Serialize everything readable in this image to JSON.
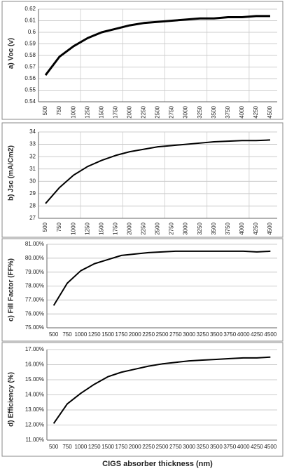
{
  "chart_data": [
    {
      "type": "line",
      "ylabel": "a)  Voc (v)",
      "categories": [
        "500",
        "750",
        "1000",
        "1250",
        "1500",
        "1750",
        "2000",
        "2250",
        "2500",
        "2750",
        "3000",
        "3250",
        "3500",
        "3750",
        "4000",
        "4250",
        "4500"
      ],
      "series": [
        {
          "name": "Voc",
          "color": "#000000",
          "values": [
            0.563,
            0.579,
            0.588,
            0.595,
            0.6,
            0.603,
            0.606,
            0.608,
            0.609,
            0.61,
            0.611,
            0.612,
            0.612,
            0.613,
            0.613,
            0.614,
            0.614
          ]
        }
      ],
      "ylim": [
        0.54,
        0.62
      ],
      "yticks": [
        0.54,
        0.55,
        0.56,
        0.57,
        0.58,
        0.59,
        0.6,
        0.61,
        0.62
      ],
      "grid": "both"
    },
    {
      "type": "line",
      "ylabel": "b) Jsc (mA/Cm2)",
      "categories": [
        "500",
        "750",
        "1000",
        "1250",
        "1500",
        "1750",
        "2000",
        "2250",
        "2500",
        "2750",
        "3000",
        "3250",
        "3500",
        "3750",
        "4000",
        "4250",
        "4500"
      ],
      "series": [
        {
          "name": "Jsc",
          "color": "#000000",
          "values": [
            28.2,
            29.5,
            30.5,
            31.2,
            31.7,
            32.1,
            32.4,
            32.6,
            32.8,
            32.9,
            33.0,
            33.1,
            33.2,
            33.25,
            33.3,
            33.3,
            33.35
          ]
        }
      ],
      "ylim": [
        27,
        34
      ],
      "yticks": [
        27,
        28,
        29,
        30,
        31,
        32,
        33,
        34
      ],
      "grid": "both"
    },
    {
      "type": "line",
      "ylabel": "c) Fill Factor (FF%)",
      "categories": [
        "500",
        "750",
        "1000",
        "1250",
        "1500",
        "1750",
        "2000",
        "2250",
        "2500",
        "2750",
        "3000",
        "3250",
        "3500",
        "3750",
        "4000",
        "4250",
        "4500"
      ],
      "series": [
        {
          "name": "FF",
          "color": "#000000",
          "values": [
            76.6,
            78.2,
            79.1,
            79.6,
            79.9,
            80.2,
            80.3,
            80.4,
            80.45,
            80.5,
            80.5,
            80.5,
            80.5,
            80.5,
            80.5,
            80.45,
            80.5
          ]
        }
      ],
      "ylim": [
        75,
        81
      ],
      "yticks": [
        {
          "value": 75,
          "label": "75.00%"
        },
        {
          "value": 76,
          "label": "76.00%"
        },
        {
          "value": 77,
          "label": "77.00%"
        },
        {
          "value": 78,
          "label": "78.00%"
        },
        {
          "value": 79,
          "label": "79.00%"
        },
        {
          "value": 80,
          "label": "80.00%"
        },
        {
          "value": 81,
          "label": "81.00%"
        }
      ],
      "grid": "y"
    },
    {
      "type": "line",
      "ylabel": "d) Efficiency (%)",
      "xlabel": "CIGS absorber thickness (nm)",
      "categories": [
        "500",
        "750",
        "1000",
        "1250",
        "1500",
        "1750",
        "2000",
        "2250",
        "2500",
        "2750",
        "3000",
        "3250",
        "3500",
        "3750",
        "4000",
        "4250",
        "4500"
      ],
      "series": [
        {
          "name": "Efficiency",
          "color": "#000000",
          "values": [
            12.1,
            13.4,
            14.1,
            14.7,
            15.2,
            15.5,
            15.7,
            15.9,
            16.05,
            16.15,
            16.25,
            16.3,
            16.35,
            16.4,
            16.45,
            16.45,
            16.5
          ]
        }
      ],
      "ylim": [
        11,
        17
      ],
      "yticks": [
        {
          "value": 11,
          "label": "11.00%"
        },
        {
          "value": 12,
          "label": "12.00%"
        },
        {
          "value": 13,
          "label": "13.00%"
        },
        {
          "value": 14,
          "label": "14.00%"
        },
        {
          "value": 15,
          "label": "15.00%"
        },
        {
          "value": 16,
          "label": "16.00%"
        },
        {
          "value": 17,
          "label": "17.00%"
        }
      ],
      "grid": "y"
    }
  ]
}
